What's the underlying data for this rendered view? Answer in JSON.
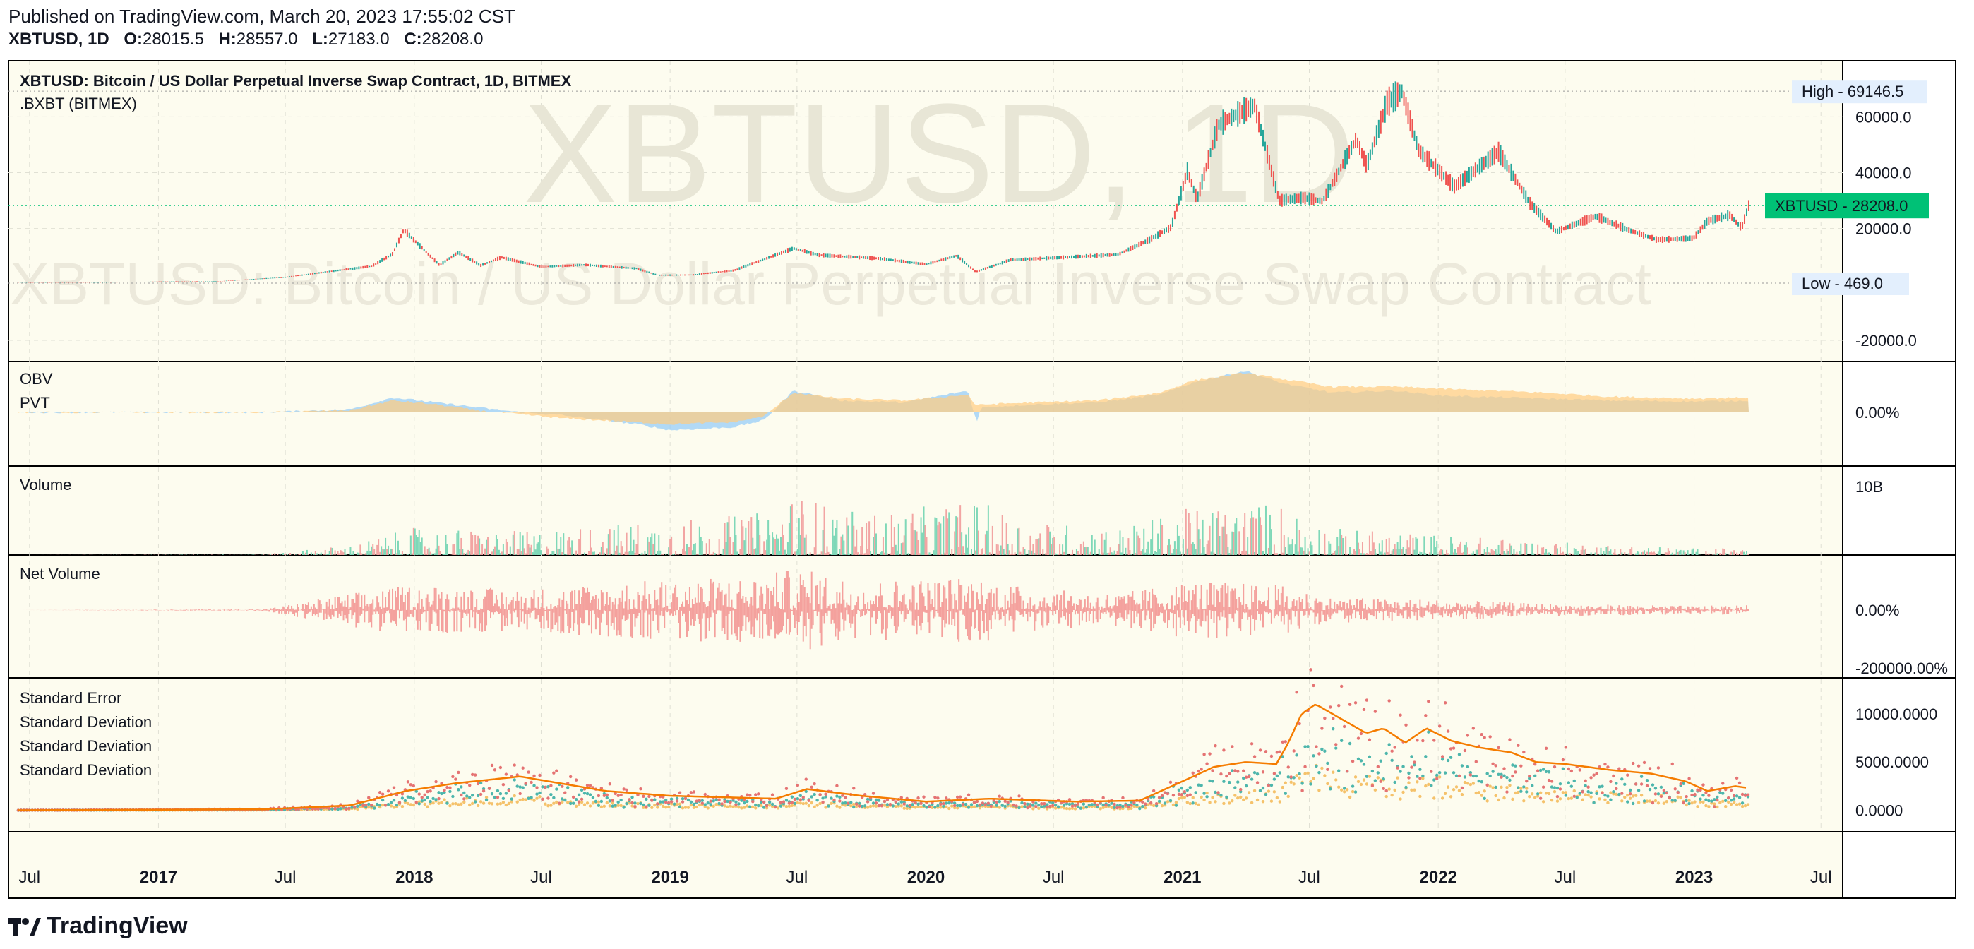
{
  "header": {
    "published": "Published on TradingView.com, March 20, 2023 17:55:02 CST",
    "symbol": "XBTUSD, 1D",
    "open_label": "O:",
    "open": "28015.5",
    "high_label": "H:",
    "high": "28557.0",
    "low_label": "L:",
    "low": "27183.0",
    "close_label": "C:",
    "close": "28208.0"
  },
  "footer": {
    "brand": "TradingView"
  },
  "colors": {
    "background": "#fdfcef",
    "up": "#26a69a",
    "down": "#ef5350",
    "obv": "#90caf9",
    "pvt": "#ffcc80",
    "stderr_line": "#f57c00",
    "price_label_bg": "#00c176",
    "minmax_label_bg": "#e3effd"
  },
  "chart_data": [
    {
      "pane": "price",
      "type": "line",
      "title": "XBTUSD: Bitcoin / US Dollar Perpetual Inverse Swap Contract, 1D, BITMEX",
      "legend": [
        ".BXBT (BITMEX)"
      ],
      "watermark_large": "XBTUSD, 1D",
      "watermark_small": "XBTUSD: Bitcoin / US Dollar Perpetual Inverse Swap Contract",
      "x": [
        "2016-06-15",
        "2016-10-01",
        "2017-01-01",
        "2017-04-01",
        "2017-07-01",
        "2017-09-01",
        "2017-11-01",
        "2017-12-01",
        "2017-12-17",
        "2018-02-06",
        "2018-03-05",
        "2018-04-06",
        "2018-05-05",
        "2018-07-01",
        "2018-09-01",
        "2018-11-14",
        "2018-12-15",
        "2019-02-01",
        "2019-04-02",
        "2019-06-26",
        "2019-08-01",
        "2019-10-26",
        "2020-01-01",
        "2020-02-14",
        "2020-03-12",
        "2020-05-01",
        "2020-07-25",
        "2020-10-01",
        "2020-11-15",
        "2020-12-16",
        "2021-01-08",
        "2021-01-22",
        "2021-02-21",
        "2021-03-13",
        "2021-04-14",
        "2021-05-19",
        "2021-06-22",
        "2021-07-20",
        "2021-09-06",
        "2021-09-21",
        "2021-10-20",
        "2021-11-10",
        "2021-12-04",
        "2022-01-24",
        "2022-03-28",
        "2022-05-12",
        "2022-06-18",
        "2022-08-14",
        "2022-09-30",
        "2022-11-09",
        "2022-12-31",
        "2023-01-20",
        "2023-02-21",
        "2023-03-10",
        "2023-03-20"
      ],
      "y": [
        700,
        620,
        1000,
        1150,
        2550,
        4600,
        6500,
        10900,
        19500,
        6900,
        11500,
        6800,
        9700,
        6300,
        7000,
        5700,
        3300,
        3400,
        5000,
        12900,
        10500,
        9300,
        7200,
        10300,
        4500,
        8800,
        9800,
        10700,
        16000,
        20500,
        40500,
        30500,
        57000,
        60000,
        64000,
        30000,
        31000,
        29800,
        52000,
        42500,
        65000,
        69100,
        48000,
        35000,
        47500,
        29000,
        18900,
        24400,
        19400,
        16000,
        16500,
        22700,
        24800,
        20200,
        28208
      ],
      "ylim": [
        -20000,
        75000
      ],
      "yticks": [
        "60000.0",
        "40000.0",
        "20000.0",
        "-20000.0"
      ],
      "ytick_values": [
        60000,
        40000,
        20000,
        -20000
      ],
      "high_label": "High",
      "high": "69146.5",
      "low_label": "Low",
      "low": "469.0",
      "last_label": "XBTUSD",
      "last": "28208.0"
    },
    {
      "pane": "obv_pvt",
      "type": "area",
      "legend": [
        "OBV",
        "PVT"
      ],
      "ytick": "0.00%",
      "series": [
        {
          "name": "OBV",
          "x": [
            "2016-06-15",
            "2017-06-01",
            "2017-10-01",
            "2017-12-01",
            "2018-02-01",
            "2018-04-01",
            "2018-06-01",
            "2018-08-01",
            "2018-11-15",
            "2019-01-01",
            "2019-04-01",
            "2019-05-15",
            "2019-06-26",
            "2019-09-01",
            "2019-12-01",
            "2020-03-01",
            "2020-03-13",
            "2020-03-20",
            "2020-06-01",
            "2020-09-01",
            "2020-12-01",
            "2021-01-15",
            "2021-04-01",
            "2021-05-20",
            "2021-08-01",
            "2021-11-01",
            "2022-01-01",
            "2022-06-01",
            "2022-09-01",
            "2023-01-01",
            "2023-03-20"
          ],
          "values": [
            0,
            0,
            3,
            15,
            10,
            5,
            0,
            -3,
            -12,
            -18,
            -15,
            -8,
            22,
            12,
            10,
            22,
            -10,
            5,
            8,
            10,
            18,
            30,
            42,
            30,
            20,
            22,
            17,
            14,
            12,
            11,
            12
          ]
        },
        {
          "name": "PVT",
          "x": [
            "2016-06-15",
            "2017-06-01",
            "2017-10-01",
            "2017-12-01",
            "2018-02-01",
            "2018-04-01",
            "2018-06-01",
            "2018-08-01",
            "2018-11-15",
            "2019-01-01",
            "2019-04-01",
            "2019-05-15",
            "2019-06-26",
            "2019-09-01",
            "2019-12-01",
            "2020-03-01",
            "2020-03-13",
            "2020-03-20",
            "2020-06-01",
            "2020-09-01",
            "2020-12-01",
            "2021-01-15",
            "2021-04-01",
            "2021-05-20",
            "2021-08-01",
            "2021-11-01",
            "2022-01-01",
            "2022-06-01",
            "2022-09-01",
            "2023-01-01",
            "2023-03-20"
          ],
          "values": [
            0,
            0,
            2,
            12,
            8,
            2,
            -2,
            -6,
            -10,
            -12,
            -10,
            -4,
            20,
            14,
            12,
            18,
            6,
            8,
            10,
            12,
            20,
            32,
            40,
            34,
            26,
            26,
            24,
            20,
            16,
            14,
            15
          ]
        }
      ]
    },
    {
      "pane": "volume",
      "type": "bar",
      "legend": [
        "Volume"
      ],
      "ytick": "10B",
      "ytick_value": 10,
      "envelope_x": [
        "2016-06-15",
        "2017-06-01",
        "2017-10-01",
        "2018-01-01",
        "2018-06-01",
        "2018-12-01",
        "2019-05-01",
        "2019-07-01",
        "2019-10-01",
        "2020-03-12",
        "2020-06-01",
        "2020-10-01",
        "2021-01-15",
        "2021-05-19",
        "2021-08-01",
        "2022-01-01",
        "2022-06-01",
        "2023-01-01",
        "2023-03-20"
      ],
      "envelope_values": [
        0,
        0.1,
        1.5,
        4,
        3.5,
        5,
        6,
        9,
        6,
        8,
        5,
        4,
        7,
        8,
        4,
        3,
        2,
        1,
        1
      ],
      "ylim": [
        0,
        13
      ]
    },
    {
      "pane": "net_volume",
      "type": "bar",
      "legend": [
        "Net Volume"
      ],
      "yticks": [
        "0.00%",
        "-200000.00%"
      ],
      "envelope_x": [
        "2016-06-15",
        "2017-06-01",
        "2017-10-01",
        "2018-01-01",
        "2018-06-01",
        "2018-12-01",
        "2019-05-01",
        "2019-07-01",
        "2019-10-01",
        "2020-03-12",
        "2020-06-01",
        "2020-10-01",
        "2021-01-15",
        "2021-05-19",
        "2021-08-01",
        "2022-01-01",
        "2022-06-01",
        "2023-01-01",
        "2023-03-20"
      ],
      "envelope_values": [
        0,
        0.02,
        0.4,
        0.6,
        0.5,
        0.7,
        0.8,
        1,
        0.7,
        0.8,
        0.5,
        0.4,
        0.7,
        0.6,
        0.3,
        0.25,
        0.15,
        0.1,
        0.12
      ]
    },
    {
      "pane": "std",
      "type": "line",
      "legend": [
        "Standard Error",
        "Standard Deviation",
        "Standard Deviation",
        "Standard Deviation"
      ],
      "yticks": [
        "10000.0000",
        "5000.0000",
        "0.0000"
      ],
      "ytick_values": [
        10000,
        5000,
        0
      ],
      "ylim": [
        -1500,
        13000
      ],
      "stderr_x": [
        "2016-06-15",
        "2017-06-01",
        "2017-10-01",
        "2017-12-20",
        "2018-03-01",
        "2018-06-01",
        "2018-10-01",
        "2019-01-01",
        "2019-06-01",
        "2019-07-15",
        "2019-10-01",
        "2020-01-01",
        "2020-04-01",
        "2020-08-01",
        "2020-11-01",
        "2021-01-01",
        "2021-02-15",
        "2021-04-01",
        "2021-05-15",
        "2021-06-01",
        "2021-06-20",
        "2021-07-10",
        "2021-08-15",
        "2021-09-20",
        "2021-10-15",
        "2021-11-15",
        "2021-12-15",
        "2022-01-20",
        "2022-03-01",
        "2022-04-15",
        "2022-05-20",
        "2022-07-01",
        "2022-09-01",
        "2022-11-01",
        "2022-12-20",
        "2023-01-20",
        "2023-03-01",
        "2023-03-20"
      ],
      "stderr_values": [
        0,
        100,
        500,
        2000,
        2800,
        3500,
        2000,
        1500,
        1200,
        2200,
        1500,
        900,
        1200,
        900,
        1000,
        3000,
        4500,
        5000,
        4800,
        7000,
        10000,
        11000,
        9500,
        8000,
        8500,
        7000,
        8500,
        7200,
        6500,
        6000,
        5000,
        4800,
        4200,
        3800,
        3000,
        2000,
        2500,
        2300
      ]
    }
  ],
  "x_axis": {
    "ticks": [
      "Jul",
      "2017",
      "Jul",
      "2018",
      "Jul",
      "2019",
      "Jul",
      "2020",
      "Jul",
      "2021",
      "Jul",
      "2022",
      "Jul",
      "2023",
      "Jul"
    ],
    "tick_dates": [
      "2016-07-01",
      "2017-01-01",
      "2017-07-01",
      "2018-01-01",
      "2018-07-01",
      "2019-01-01",
      "2019-07-01",
      "2020-01-01",
      "2020-07-01",
      "2021-01-01",
      "2021-07-01",
      "2022-01-01",
      "2022-07-01",
      "2023-01-01",
      "2023-07-01"
    ]
  }
}
